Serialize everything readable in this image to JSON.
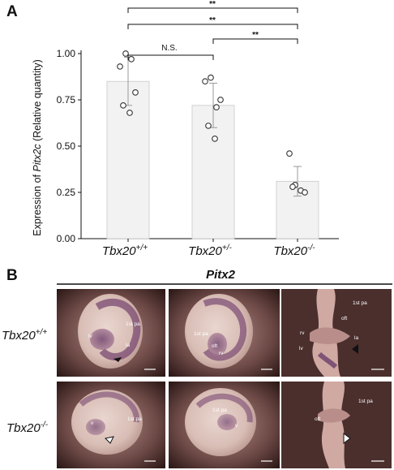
{
  "panel_labels": {
    "a": "A",
    "b": "B"
  },
  "chart_data": {
    "type": "bar",
    "categories": [
      "Tbx20+/+",
      "Tbx20+/-",
      "Tbx20-/-"
    ],
    "category_labels": [
      {
        "base": "Tbx20",
        "sup": "+/+"
      },
      {
        "base": "Tbx20",
        "sup": "+/-"
      },
      {
        "base": "Tbx20",
        "sup": "-/-"
      }
    ],
    "values": [
      0.85,
      0.72,
      0.31
    ],
    "error": [
      0.13,
      0.12,
      0.08
    ],
    "points": [
      [
        0.93,
        1.0,
        0.97,
        0.79,
        0.72,
        0.68
      ],
      [
        0.85,
        0.87,
        0.71,
        0.75,
        0.61,
        0.54
      ],
      [
        0.46,
        0.29,
        0.26,
        0.25,
        0.28
      ]
    ],
    "ylabel": {
      "prefix": "Expression of ",
      "gene": "Pitx2c",
      "suffix": " (Relative quantity)"
    },
    "yticks": [
      "0.00",
      "0.25",
      "0.50",
      "0.75",
      "1.00"
    ],
    "ytick_values": [
      0,
      0.25,
      0.5,
      0.75,
      1.0
    ],
    "ylim": [
      0,
      1.0
    ],
    "comparisons": [
      {
        "pair": [
          0,
          1
        ],
        "label": "N.S."
      },
      {
        "pair": [
          1,
          2
        ],
        "label": "**"
      },
      {
        "pair": [
          0,
          2
        ],
        "label": "**"
      },
      {
        "pair": [
          0,
          2
        ],
        "label": "**"
      }
    ],
    "bar_color": "#f2f2f2",
    "point_color": "#ffffff"
  },
  "panel_b": {
    "title": "Pitx2",
    "rows": [
      {
        "base": "Tbx20",
        "sup": "+/+"
      },
      {
        "base": "Tbx20",
        "sup": "-/-"
      }
    ],
    "embryo_labels": {
      "lv": "lv",
      "la": "la",
      "rv": "rv",
      "oft": "oft",
      "v": "v",
      "pa": "1st pa"
    }
  }
}
